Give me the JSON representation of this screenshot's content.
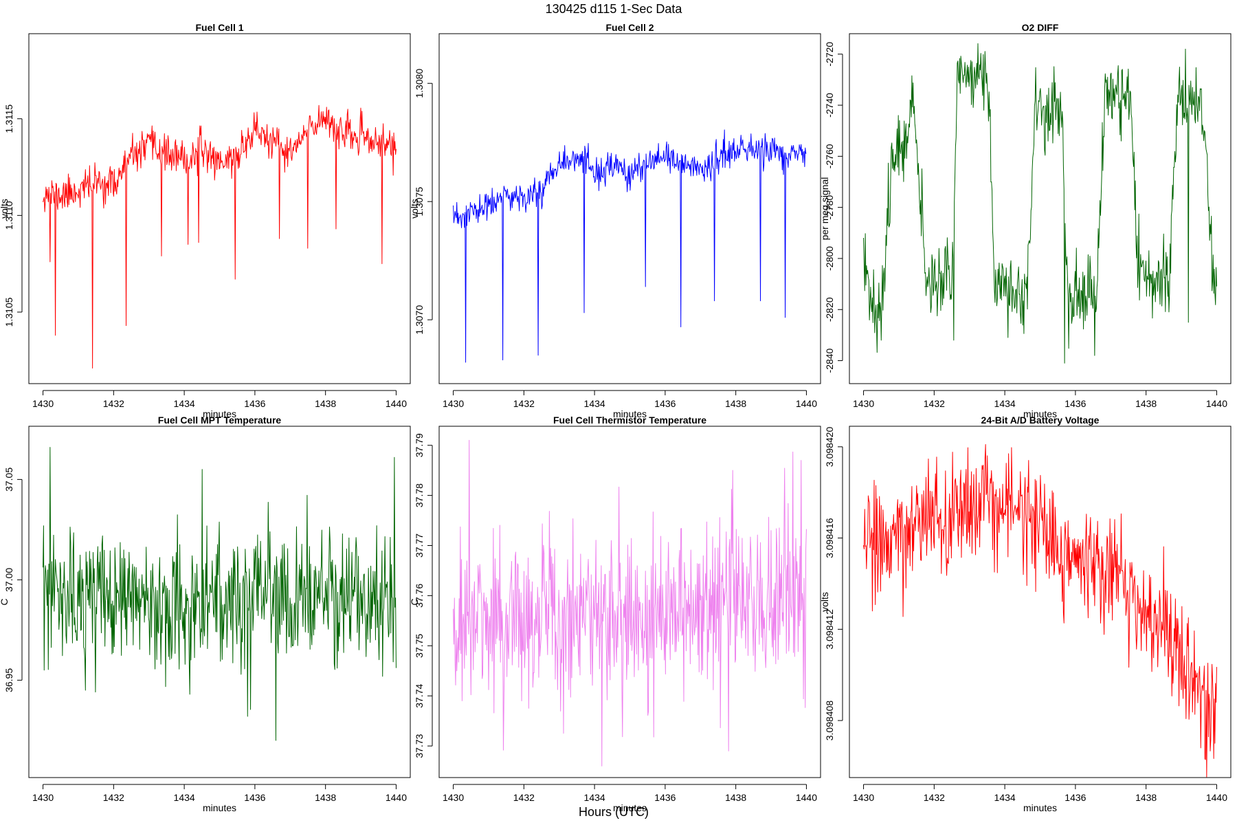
{
  "figure": {
    "title": "130425   d115   1-Sec Data",
    "common_xlabel": "Hours (UTC)"
  },
  "chart_data": [
    {
      "type": "line",
      "title": "Fuel Cell 1",
      "xlabel": "minutes",
      "ylabel": "volts",
      "color": "#ff0000",
      "xlim": [
        1429.6,
        1440.4
      ],
      "ylim": [
        1.31013,
        1.31194
      ],
      "xticks": [
        1430,
        1432,
        1434,
        1436,
        1438,
        1440
      ],
      "yticks": [
        1.3105,
        1.311,
        1.3115
      ],
      "ytick_labels": [
        "1.3105",
        "1.3110",
        "1.3115"
      ],
      "profile": [
        [
          1430.0,
          1.31112
        ],
        [
          1430.5,
          1.3111
        ],
        [
          1431.0,
          1.31113
        ],
        [
          1431.5,
          1.31117
        ],
        [
          1432.0,
          1.31116
        ],
        [
          1432.5,
          1.3113
        ],
        [
          1433.0,
          1.31136
        ],
        [
          1433.5,
          1.31132
        ],
        [
          1434.0,
          1.31128
        ],
        [
          1434.5,
          1.31134
        ],
        [
          1435.0,
          1.31128
        ],
        [
          1435.5,
          1.3113
        ],
        [
          1436.0,
          1.31145
        ],
        [
          1436.5,
          1.31137
        ],
        [
          1437.0,
          1.31132
        ],
        [
          1437.5,
          1.31143
        ],
        [
          1438.0,
          1.31152
        ],
        [
          1438.5,
          1.31142
        ],
        [
          1439.0,
          1.3114
        ],
        [
          1439.5,
          1.31138
        ],
        [
          1440.0,
          1.31136
        ]
      ],
      "noise": 4.5e-05,
      "spikes": [
        [
          1430.2,
          1.31076
        ],
        [
          1430.35,
          1.31038
        ],
        [
          1431.4,
          1.31021
        ],
        [
          1432.35,
          1.31043
        ],
        [
          1433.35,
          1.31079
        ],
        [
          1434.1,
          1.31085
        ],
        [
          1434.4,
          1.31086
        ],
        [
          1435.45,
          1.31067
        ],
        [
          1436.7,
          1.31088
        ],
        [
          1437.5,
          1.31083
        ],
        [
          1438.3,
          1.31093
        ],
        [
          1439.6,
          1.31075
        ]
      ],
      "seed": 11
    },
    {
      "type": "line",
      "title": "Fuel Cell 2",
      "xlabel": "minutes",
      "ylabel": "volts",
      "color": "#0000ff",
      "xlim": [
        1429.6,
        1440.4
      ],
      "ylim": [
        1.30673,
        1.30821
      ],
      "xticks": [
        1430,
        1432,
        1434,
        1436,
        1438,
        1440
      ],
      "yticks": [
        1.307,
        1.3075,
        1.308
      ],
      "ytick_labels": [
        "1.3070",
        "1.3075",
        "1.3080"
      ],
      "profile": [
        [
          1430.0,
          1.30742
        ],
        [
          1430.5,
          1.30745
        ],
        [
          1431.0,
          1.30748
        ],
        [
          1431.5,
          1.30752
        ],
        [
          1432.0,
          1.30752
        ],
        [
          1432.5,
          1.30755
        ],
        [
          1433.0,
          1.30768
        ],
        [
          1433.5,
          1.30768
        ],
        [
          1434.0,
          1.30762
        ],
        [
          1434.5,
          1.30764
        ],
        [
          1435.0,
          1.30762
        ],
        [
          1435.5,
          1.30765
        ],
        [
          1436.0,
          1.30768
        ],
        [
          1436.5,
          1.30766
        ],
        [
          1437.0,
          1.30764
        ],
        [
          1437.5,
          1.30768
        ],
        [
          1438.0,
          1.30772
        ],
        [
          1438.5,
          1.30771
        ],
        [
          1439.0,
          1.30772
        ],
        [
          1439.5,
          1.3077
        ],
        [
          1440.0,
          1.30769
        ]
      ],
      "noise": 3.2e-05,
      "spikes": [
        [
          1430.35,
          1.30682
        ],
        [
          1431.4,
          1.30683
        ],
        [
          1432.4,
          1.30685
        ],
        [
          1433.7,
          1.30703
        ],
        [
          1435.45,
          1.30714
        ],
        [
          1436.45,
          1.30697
        ],
        [
          1437.4,
          1.30708
        ],
        [
          1438.7,
          1.30708
        ],
        [
          1439.4,
          1.30701
        ]
      ],
      "seed": 23
    },
    {
      "type": "line",
      "title": "O2 DIFF",
      "xlabel": "minutes",
      "ylabel": "per meg signal",
      "color": "#006400",
      "xlim": [
        1429.6,
        1440.4
      ],
      "ylim": [
        -2849,
        -2712
      ],
      "xticks": [
        1430,
        1432,
        1434,
        1436,
        1438,
        1440
      ],
      "yticks": [
        -2840,
        -2820,
        -2800,
        -2780,
        -2760,
        -2740,
        -2720
      ],
      "ytick_labels": [
        "-2840",
        "-2820",
        "-2800",
        "-2780",
        "-2760",
        "-2740",
        "-2720"
      ],
      "profile": [
        [
          1430.0,
          -2800
        ],
        [
          1430.35,
          -2820
        ],
        [
          1430.55,
          -2815
        ],
        [
          1430.8,
          -2762
        ],
        [
          1431.1,
          -2752
        ],
        [
          1431.45,
          -2742
        ],
        [
          1431.75,
          -2808
        ],
        [
          1432.5,
          -2806
        ],
        [
          1432.65,
          -2728
        ],
        [
          1433.5,
          -2728
        ],
        [
          1433.72,
          -2810
        ],
        [
          1434.65,
          -2814
        ],
        [
          1434.85,
          -2740
        ],
        [
          1435.6,
          -2742
        ],
        [
          1435.8,
          -2818
        ],
        [
          1436.6,
          -2812
        ],
        [
          1436.85,
          -2735
        ],
        [
          1437.55,
          -2738
        ],
        [
          1437.8,
          -2805
        ],
        [
          1438.65,
          -2808
        ],
        [
          1438.9,
          -2735
        ],
        [
          1439.65,
          -2745
        ],
        [
          1439.9,
          -2808
        ],
        [
          1440.0,
          -2810
        ]
      ],
      "noise": 7,
      "spikes": [
        [
          1430.5,
          -2832
        ],
        [
          1432.55,
          -2832
        ],
        [
          1435.7,
          -2841
        ],
        [
          1436.55,
          -2838
        ],
        [
          1439.2,
          -2825
        ]
      ],
      "seed": 37
    },
    {
      "type": "line",
      "title": "Fuel Cell MPT Temperature",
      "xlabel": "minutes",
      "ylabel": "C",
      "color": "#006400",
      "xlim": [
        1429.6,
        1440.4
      ],
      "ylim": [
        36.9015,
        37.0765
      ],
      "xticks": [
        1430,
        1432,
        1434,
        1436,
        1438,
        1440
      ],
      "yticks": [
        36.95,
        37.0,
        37.05
      ],
      "ytick_labels": [
        "36.95",
        "37.00",
        "37.05"
      ],
      "profile": [
        [
          1430.0,
          36.99
        ],
        [
          1440.0,
          36.99
        ]
      ],
      "noise": 0.016,
      "spikes": [
        [
          1430.2,
          37.066
        ],
        [
          1431.2,
          36.945
        ],
        [
          1434.15,
          36.943
        ],
        [
          1434.5,
          37.055
        ],
        [
          1435.8,
          36.932
        ],
        [
          1436.6,
          36.92
        ],
        [
          1439.95,
          37.061
        ]
      ],
      "seed": 53
    },
    {
      "type": "line",
      "title": "Fuel Cell Thermistor Temperature",
      "xlabel": "minutes",
      "ylabel": "C",
      "color": "#ee82ee",
      "xlim": [
        1429.6,
        1440.4
      ],
      "ylim": [
        37.7237,
        37.7938
      ],
      "xticks": [
        1430,
        1432,
        1434,
        1436,
        1438,
        1440
      ],
      "yticks": [
        37.73,
        37.74,
        37.75,
        37.76,
        37.77,
        37.78,
        37.79
      ],
      "ytick_labels": [
        "37.73",
        "37.74",
        "37.75",
        "37.76",
        "37.77",
        "37.78",
        "37.79"
      ],
      "profile": [
        [
          1430.0,
          37.754
        ],
        [
          1440.0,
          37.76
        ]
      ],
      "noise": 0.0085,
      "spikes": [
        [
          1430.45,
          37.791
        ],
        [
          1434.2,
          37.726
        ],
        [
          1437.8,
          37.729
        ],
        [
          1439.85,
          37.787
        ]
      ],
      "seed": 71
    },
    {
      "type": "line",
      "title": "24-Bit A/D Battery Voltage",
      "xlabel": "minutes",
      "ylabel": "volts",
      "color": "#ff0000",
      "xlim": [
        1429.6,
        1440.4
      ],
      "ylim": [
        3.0984055,
        3.0984209
      ],
      "xticks": [
        1430,
        1432,
        1434,
        1436,
        1438,
        1440
      ],
      "yticks": [
        3.098408,
        3.098412,
        3.098416,
        3.09842
      ],
      "ytick_labels": [
        "3.098408",
        "3.098412",
        "3.098416",
        "3.098420"
      ],
      "profile": [
        [
          1430.0,
          3.0984155
        ],
        [
          1431.0,
          3.0984163
        ],
        [
          1432.0,
          3.0984165
        ],
        [
          1433.0,
          3.0984173
        ],
        [
          1433.5,
          3.0984178
        ],
        [
          1434.0,
          3.0984176
        ],
        [
          1434.5,
          3.0984171
        ],
        [
          1435.0,
          3.0984166
        ],
        [
          1435.5,
          3.0984155
        ],
        [
          1436.0,
          3.0984153
        ],
        [
          1436.5,
          3.0984148
        ],
        [
          1437.0,
          3.0984147
        ],
        [
          1437.5,
          3.0984138
        ],
        [
          1438.0,
          3.0984128
        ],
        [
          1438.5,
          3.0984118
        ],
        [
          1439.0,
          3.0984105
        ],
        [
          1439.5,
          3.0984092
        ],
        [
          1440.0,
          3.0984083
        ]
      ],
      "noise": 1.2e-06,
      "spikes": [
        [
          1433.45,
          3.0984201
        ],
        [
          1439.55,
          3.0984068
        ]
      ],
      "seed": 89
    }
  ]
}
